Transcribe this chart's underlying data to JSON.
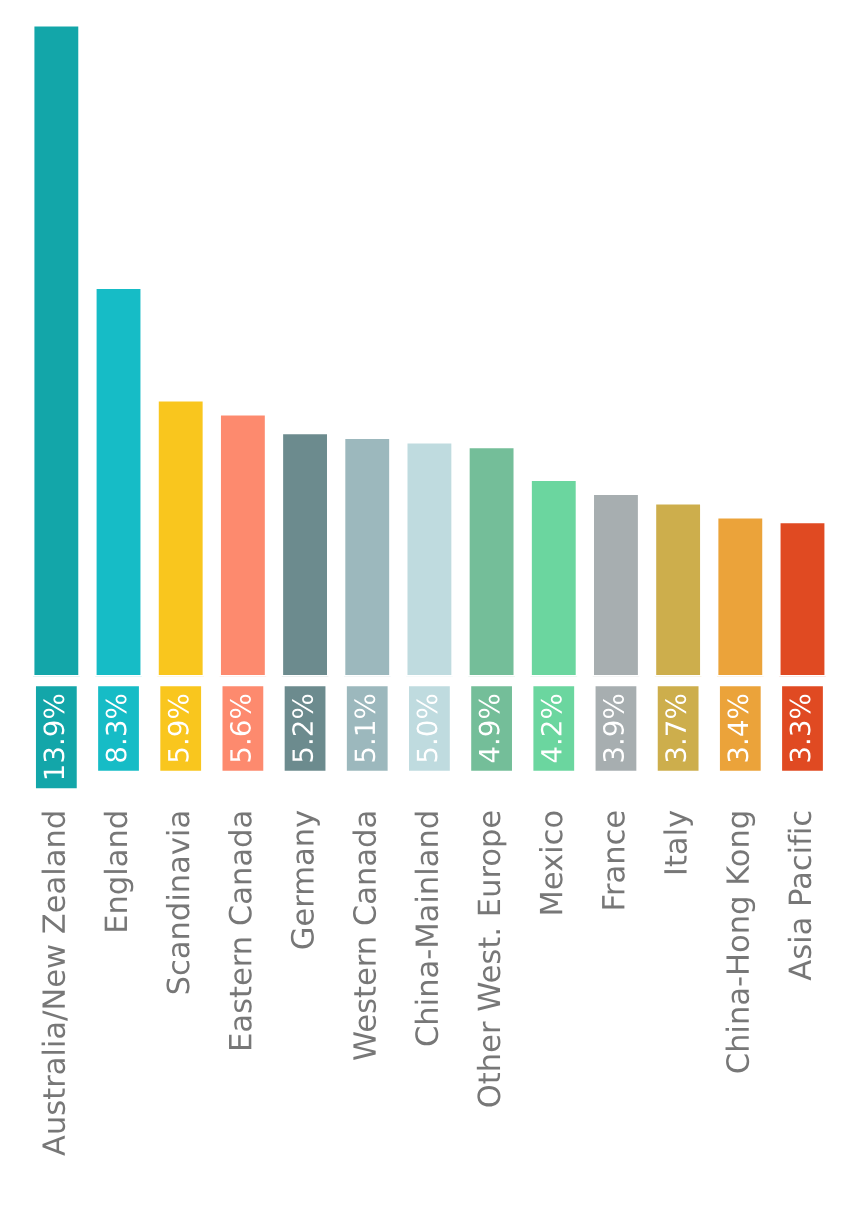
{
  "chart_data": {
    "type": "bar",
    "categories": [
      "Australia/New Zealand",
      "England",
      "Scandinavia",
      "Eastern Canada",
      "Germany",
      "Western Canada",
      "China-Mainland",
      "Other West. Europe",
      "Mexico",
      "France",
      "Italy",
      "China-Hong Kong",
      "Asia Pacific"
    ],
    "values": [
      13.9,
      8.3,
      5.9,
      5.6,
      5.2,
      5.1,
      5.0,
      4.9,
      4.2,
      3.9,
      3.7,
      3.4,
      3.3
    ],
    "value_labels": [
      "13.9%",
      "8.3%",
      "5.9%",
      "5.6%",
      "5.2%",
      "5.1%",
      "5.0%",
      "4.9%",
      "4.2%",
      "3.9%",
      "3.7%",
      "3.4%",
      "3.3%"
    ],
    "colors": [
      "#13a6a9",
      "#16bcc6",
      "#f9c61e",
      "#fd8a6e",
      "#6c8b8e",
      "#9cb8bd",
      "#bfdbdf",
      "#74be99",
      "#6bd69f",
      "#a7aeb0",
      "#cdae4c",
      "#eba33a",
      "#e04a22"
    ]
  }
}
